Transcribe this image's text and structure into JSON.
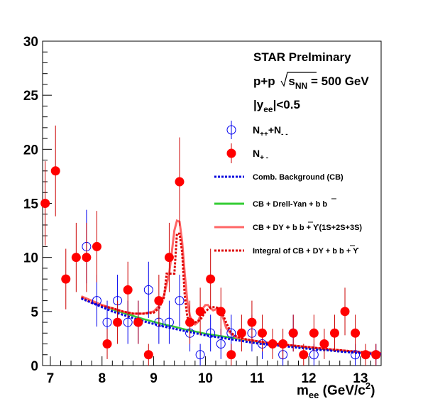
{
  "chart_data": {
    "type": "scatter",
    "title_lines": {
      "l1": "STAR Prelminary",
      "l2_prefix": "p+p ",
      "l2_sqrt": "s",
      "l2_sub": "NN",
      "l2_suffix": " = 500 GeV",
      "l3_prefix": "|y",
      "l3_sub": "ee",
      "l3_suffix": "|<0.5"
    },
    "xlabel": {
      "main": "m",
      "sub": "ee",
      "unit": " (GeV/c",
      "sup": "2",
      "close": ")"
    },
    "ylabel": "",
    "xlim": [
      6.85,
      13.4
    ],
    "ylim": [
      0,
      30
    ],
    "x_ticks": [
      "7",
      "8",
      "9",
      "10",
      "11",
      "12",
      "13"
    ],
    "y_ticks": [
      "0",
      "5",
      "10",
      "15",
      "20",
      "25",
      "30"
    ],
    "legend": {
      "like_sign": {
        "main": "N",
        "sub1": "++",
        "mid": "+N",
        "sub2": "- -"
      },
      "unlike_sign": {
        "main": "N",
        "sub": "+ -"
      },
      "cb": "Comb. Background (CB)",
      "dy": "CB + Drell-Yan + b  b",
      "ups": "CB + DY + b  b + ϒ(1S+2S+3S)",
      "integral": "Integral of CB + DY + b   b + ϒ"
    },
    "colors": {
      "like_sign": "#0000ee",
      "unlike_sign": "#ff0000",
      "cb": "#0000dd",
      "dy": "#33cc33",
      "ups": "#ff6666",
      "integral": "#dd0000",
      "error_bar": "#cc0000"
    },
    "series": [
      {
        "name": "N++ + N--",
        "points": [
          [
            7.7,
            11,
            3.4
          ],
          [
            7.9,
            6,
            2.4
          ],
          [
            8.1,
            4,
            2.0
          ],
          [
            8.3,
            6,
            2.4
          ],
          [
            8.5,
            4,
            2.0
          ],
          [
            8.7,
            4,
            2.0
          ],
          [
            8.9,
            7,
            2.6
          ],
          [
            9.1,
            4,
            2.0
          ],
          [
            9.3,
            4,
            2.0
          ],
          [
            9.5,
            6,
            2.4
          ],
          [
            9.7,
            3,
            1.7
          ],
          [
            9.9,
            1,
            1.0
          ],
          [
            10.1,
            3,
            1.7
          ],
          [
            10.3,
            2,
            1.4
          ],
          [
            10.5,
            3,
            1.7
          ],
          [
            10.9,
            3,
            1.7
          ],
          [
            11.1,
            2,
            1.4
          ],
          [
            11.5,
            1,
            1.0
          ],
          [
            11.7,
            3,
            1.7
          ],
          [
            12.1,
            1,
            1.0
          ],
          [
            12.9,
            1,
            1.0
          ],
          [
            13.3,
            1,
            1.0
          ]
        ]
      },
      {
        "name": "N+-",
        "points": [
          [
            6.9,
            15,
            3.9
          ],
          [
            7.1,
            18,
            4.2
          ],
          [
            7.3,
            8,
            2.8
          ],
          [
            7.5,
            10,
            3.2
          ],
          [
            7.7,
            10,
            3.2
          ],
          [
            7.9,
            11,
            3.3
          ],
          [
            8.1,
            2,
            1.4
          ],
          [
            8.3,
            4,
            2.0
          ],
          [
            8.5,
            7,
            2.6
          ],
          [
            8.7,
            4,
            2.0
          ],
          [
            8.9,
            1,
            1.0
          ],
          [
            9.1,
            6,
            2.4
          ],
          [
            9.3,
            10,
            3.2
          ],
          [
            9.5,
            17,
            4.1
          ],
          [
            9.7,
            4,
            2.0
          ],
          [
            9.9,
            5,
            2.2
          ],
          [
            10.1,
            8,
            2.8
          ],
          [
            10.3,
            5,
            2.2
          ],
          [
            10.5,
            1,
            1.0
          ],
          [
            10.7,
            3,
            1.7
          ],
          [
            10.9,
            4,
            2.0
          ],
          [
            11.1,
            3,
            1.7
          ],
          [
            11.3,
            2,
            1.4
          ],
          [
            11.5,
            2,
            1.4
          ],
          [
            11.7,
            3,
            1.7
          ],
          [
            11.9,
            1,
            1.0
          ],
          [
            12.1,
            3,
            1.7
          ],
          [
            12.3,
            2,
            1.4
          ],
          [
            12.5,
            3,
            1.7
          ],
          [
            12.7,
            5,
            2.2
          ],
          [
            12.9,
            3,
            1.7
          ],
          [
            13.1,
            1,
            1.0
          ],
          [
            13.3,
            1,
            1.0
          ]
        ]
      }
    ],
    "curves": {
      "cb": {
        "x": [
          7.6,
          7.8,
          8.0,
          8.2,
          8.4,
          8.6,
          8.8,
          9.0,
          9.2,
          9.4,
          9.6,
          9.8,
          10.0,
          10.2,
          10.4,
          10.6,
          10.8,
          11.0,
          11.2,
          11.4,
          11.6,
          11.8,
          12.0,
          12.2,
          12.4,
          12.6,
          12.8,
          13.0,
          13.2,
          13.4
        ],
        "y": [
          6.2,
          5.8,
          5.4,
          5.0,
          4.7,
          4.4,
          4.1,
          3.85,
          3.6,
          3.4,
          3.2,
          3.0,
          2.8,
          2.65,
          2.5,
          2.35,
          2.2,
          2.05,
          1.95,
          1.85,
          1.75,
          1.65,
          1.55,
          1.45,
          1.4,
          1.3,
          1.22,
          1.15,
          1.1,
          1.05
        ]
      },
      "dy": {
        "x": [
          7.6,
          7.8,
          8.0,
          8.2,
          8.4,
          8.6,
          8.8,
          9.0,
          9.2,
          9.4,
          9.6,
          9.8,
          10.0,
          10.2,
          10.4,
          10.6,
          10.8,
          11.0,
          11.2,
          11.4,
          11.6,
          11.8,
          12.0,
          12.2,
          12.4,
          12.6,
          12.8,
          13.0,
          13.2,
          13.4
        ],
        "y": [
          6.4,
          6.0,
          5.6,
          5.2,
          4.9,
          4.6,
          4.3,
          4.05,
          3.8,
          3.6,
          3.35,
          3.15,
          2.95,
          2.8,
          2.65,
          2.5,
          2.35,
          2.2,
          2.05,
          1.95,
          1.85,
          1.75,
          1.65,
          1.55,
          1.47,
          1.38,
          1.3,
          1.22,
          1.16,
          1.1
        ]
      },
      "ups": {
        "x": [
          7.6,
          7.8,
          8.0,
          8.2,
          8.4,
          8.6,
          8.8,
          9.0,
          9.1,
          9.2,
          9.3,
          9.35,
          9.4,
          9.45,
          9.5,
          9.55,
          9.6,
          9.65,
          9.7,
          9.75,
          9.8,
          9.85,
          9.9,
          9.95,
          10.0,
          10.05,
          10.1,
          10.15,
          10.2,
          10.25,
          10.3,
          10.35,
          10.4,
          10.5,
          10.6,
          10.8,
          11.0,
          11.2,
          11.4,
          11.6,
          11.8,
          12.0,
          12.2,
          12.4,
          12.6,
          12.8,
          13.0,
          13.2,
          13.4
        ],
        "y": [
          6.4,
          6.0,
          5.6,
          5.3,
          5.0,
          4.8,
          4.8,
          5.0,
          5.5,
          6.5,
          8.5,
          10.5,
          12.5,
          13.4,
          13.3,
          11.5,
          8.5,
          6.0,
          4.6,
          4.0,
          3.8,
          4.0,
          4.6,
          5.3,
          5.6,
          5.6,
          5.3,
          5.1,
          5.2,
          5.3,
          5.0,
          4.3,
          3.5,
          2.9,
          2.6,
          2.4,
          2.25,
          2.1,
          2.0,
          1.9,
          1.8,
          1.7,
          1.6,
          1.5,
          1.42,
          1.33,
          1.25,
          1.18,
          1.12
        ]
      },
      "integral": {
        "x": [
          7.6,
          7.8,
          8.0,
          8.2,
          8.4,
          8.6,
          8.8,
          9.0,
          9.1,
          9.2,
          9.25,
          9.3,
          9.4,
          9.45,
          9.5,
          9.55,
          9.6,
          9.65,
          9.7,
          9.8,
          9.9,
          10.0,
          10.1,
          10.2,
          10.3,
          10.4,
          10.5,
          10.6,
          10.8,
          11.0,
          11.2,
          11.4,
          11.6,
          11.8,
          12.0,
          12.2,
          12.4,
          12.6,
          12.8,
          13.0,
          13.2,
          13.4
        ],
        "y": [
          6.3,
          5.8,
          5.5,
          5.3,
          5.0,
          4.8,
          4.8,
          4.9,
          5.3,
          6.3,
          8.5,
          8.5,
          8.5,
          12.2,
          12.2,
          10.5,
          6.5,
          4.5,
          4.0,
          4.0,
          4.2,
          5.0,
          5.4,
          5.4,
          5.2,
          4.0,
          3.0,
          2.7,
          2.4,
          2.25,
          2.1,
          2.0,
          1.9,
          1.8,
          1.7,
          1.6,
          1.5,
          1.42,
          1.33,
          1.25,
          1.18,
          1.12
        ]
      }
    }
  }
}
